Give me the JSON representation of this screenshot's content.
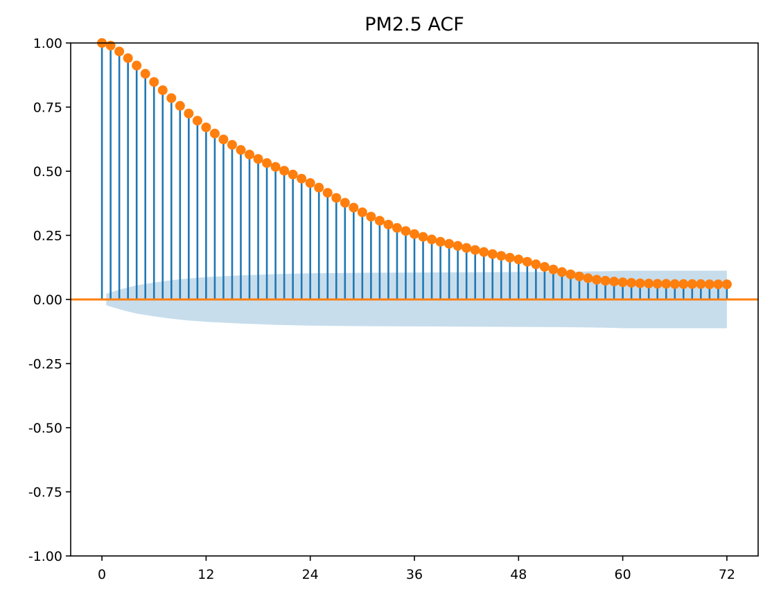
{
  "chart_data": {
    "type": "stem",
    "title": "PM2.5 ACF",
    "xlabel": "",
    "ylabel": "",
    "xlim": [
      -3.6,
      75.6
    ],
    "ylim": [
      -1.0,
      1.0
    ],
    "xticks": [
      0,
      12,
      24,
      36,
      48,
      60,
      72
    ],
    "xtick_labels": [
      "0",
      "12",
      "24",
      "36",
      "48",
      "60",
      "72"
    ],
    "yticks": [
      -1.0,
      -0.75,
      -0.5,
      -0.25,
      0.0,
      0.25,
      0.5,
      0.75,
      1.0
    ],
    "ytick_labels": [
      "-1.00",
      "-0.75",
      "-0.50",
      "-0.25",
      "0.00",
      "0.25",
      "0.50",
      "0.75",
      "1.00"
    ],
    "grid": false,
    "colors": {
      "stems": "#1f77b4",
      "markers": "#ff7f0e",
      "baseline": "#ff7f0e",
      "confidence_band": "#1f77b4"
    },
    "lags": [
      0,
      1,
      2,
      3,
      4,
      5,
      6,
      7,
      8,
      9,
      10,
      11,
      12,
      13,
      14,
      15,
      16,
      17,
      18,
      19,
      20,
      21,
      22,
      23,
      24,
      25,
      26,
      27,
      28,
      29,
      30,
      31,
      32,
      33,
      34,
      35,
      36,
      37,
      38,
      39,
      40,
      41,
      42,
      43,
      44,
      45,
      46,
      47,
      48,
      49,
      50,
      51,
      52,
      53,
      54,
      55,
      56,
      57,
      58,
      59,
      60,
      61,
      62,
      63,
      64,
      65,
      66,
      67,
      68,
      69,
      70,
      71,
      72
    ],
    "acf": [
      1.0,
      0.99,
      0.967,
      0.941,
      0.912,
      0.88,
      0.848,
      0.816,
      0.785,
      0.755,
      0.725,
      0.697,
      0.671,
      0.647,
      0.624,
      0.603,
      0.583,
      0.565,
      0.548,
      0.532,
      0.517,
      0.502,
      0.487,
      0.471,
      0.454,
      0.436,
      0.416,
      0.396,
      0.377,
      0.358,
      0.34,
      0.323,
      0.307,
      0.292,
      0.279,
      0.267,
      0.255,
      0.244,
      0.234,
      0.225,
      0.217,
      0.209,
      0.201,
      0.193,
      0.185,
      0.177,
      0.17,
      0.163,
      0.156,
      0.147,
      0.137,
      0.127,
      0.117,
      0.107,
      0.098,
      0.09,
      0.083,
      0.077,
      0.073,
      0.07,
      0.067,
      0.065,
      0.063,
      0.062,
      0.061,
      0.061,
      0.06,
      0.06,
      0.06,
      0.06,
      0.059,
      0.059,
      0.059
    ],
    "confidence_interval": {
      "x_start": 0.5,
      "x_end": 72.0,
      "x": [
        0.5,
        1,
        2,
        3,
        4,
        6,
        8,
        10,
        12,
        16,
        20,
        24,
        30,
        36,
        42,
        48,
        54,
        58,
        60,
        72
      ],
      "upper": [
        0.022,
        0.028,
        0.038,
        0.047,
        0.055,
        0.066,
        0.075,
        0.082,
        0.087,
        0.094,
        0.099,
        0.102,
        0.104,
        0.105,
        0.106,
        0.107,
        0.108,
        0.11,
        0.112,
        0.112
      ]
    }
  }
}
